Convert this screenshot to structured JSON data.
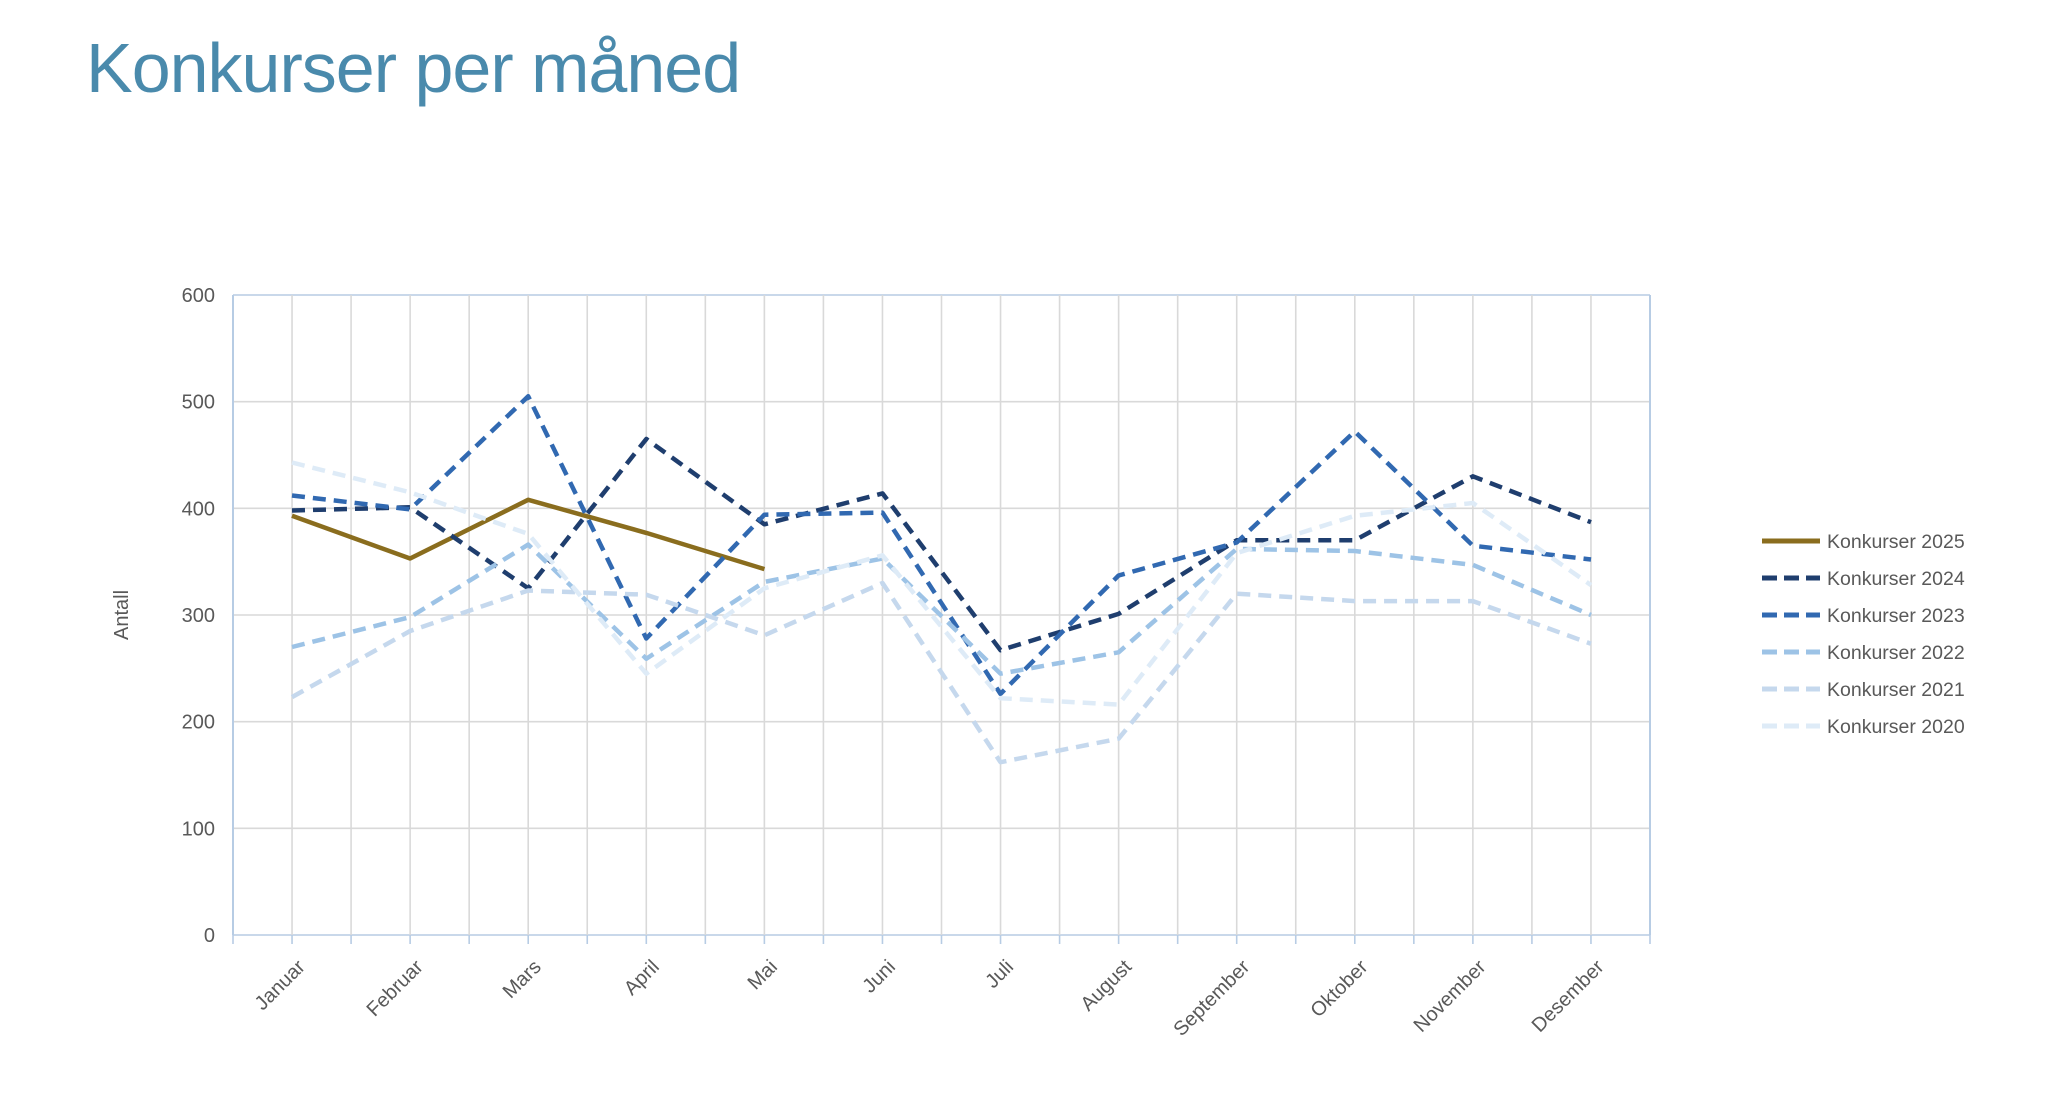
{
  "title": "Konkurser per måned",
  "colors": {
    "title_text": "#4A8AAC",
    "plot_border": "#B7CCE4",
    "gridline": "#D9D9D9",
    "axis_text": "#595959",
    "legend_text": "#595959"
  },
  "chart_data": {
    "type": "line",
    "title": "Konkurser per måned",
    "xlabel": "",
    "ylabel": "Antall",
    "ylim": [
      0,
      600
    ],
    "yticks": [
      0,
      100,
      200,
      300,
      400,
      500,
      600
    ],
    "grid": true,
    "legend_position": "right",
    "categories": [
      "Januar",
      "Februar",
      "Mars",
      "April",
      "Mai",
      "Juni",
      "Juli",
      "August",
      "September",
      "Oktober",
      "November",
      "Desember"
    ],
    "series": [
      {
        "name": "Konkurser 2025",
        "color": "#8A6D1E",
        "dash": "solid",
        "values": [
          393,
          353,
          408,
          377,
          343,
          null,
          null,
          null,
          null,
          null,
          null,
          null
        ]
      },
      {
        "name": "Konkurser 2024",
        "color": "#1F3E6E",
        "dash": "dashed",
        "values": [
          398,
          401,
          325,
          465,
          385,
          414,
          267,
          301,
          370,
          370,
          430,
          387
        ]
      },
      {
        "name": "Konkurser 2023",
        "color": "#3169B1",
        "dash": "dashed",
        "values": [
          412,
          399,
          505,
          278,
          394,
          396,
          226,
          337,
          368,
          472,
          365,
          352
        ]
      },
      {
        "name": "Konkurser 2022",
        "color": "#9DC3E6",
        "dash": "dashed",
        "values": [
          270,
          298,
          366,
          259,
          331,
          353,
          245,
          265,
          362,
          360,
          347,
          300
        ]
      },
      {
        "name": "Konkurser 2021",
        "color": "#C5D8ED",
        "dash": "dashed",
        "values": [
          223,
          285,
          323,
          319,
          281,
          330,
          162,
          184,
          320,
          313,
          313,
          273
        ]
      },
      {
        "name": "Konkurser 2020",
        "color": "#DEEBF7",
        "dash": "dashed",
        "values": [
          443,
          415,
          376,
          245,
          325,
          356,
          222,
          216,
          358,
          393,
          405,
          328
        ]
      }
    ]
  }
}
